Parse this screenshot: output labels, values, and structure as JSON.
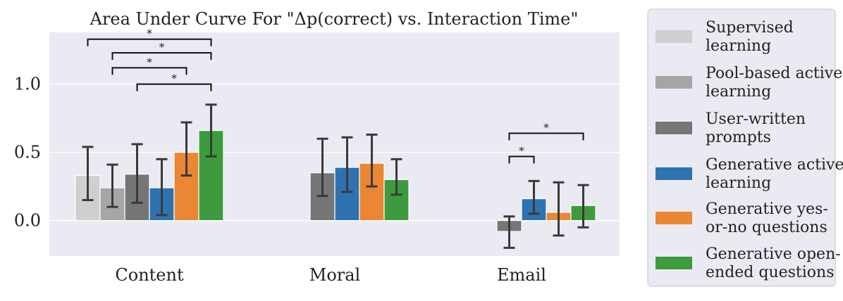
{
  "chart_data": {
    "type": "bar",
    "title": "Area Under Curve For \"Δp(correct) vs. Interaction Time\"",
    "xlabel": "",
    "ylabel": "",
    "ylim": [
      -0.26,
      1.38
    ],
    "yticks": [
      0.0,
      0.5,
      1.0
    ],
    "ytick_labels": [
      "0.0",
      "0.5",
      "1.0"
    ],
    "grid": true,
    "legend_position": "right",
    "categories": [
      "Content",
      "Moral",
      "Email"
    ],
    "series": [
      {
        "name": "Supervised learning",
        "legend_lines": [
          "Supervised",
          "learning"
        ],
        "color": "#cfcfcf",
        "values": [
          0.33,
          null,
          null
        ],
        "err_low": [
          0.15,
          null,
          null
        ],
        "err_high": [
          0.54,
          null,
          null
        ]
      },
      {
        "name": "Pool-based active learning",
        "legend_lines": [
          "Pool-based active",
          "learning"
        ],
        "color": "#a6a6a6",
        "values": [
          0.24,
          null,
          null
        ],
        "err_low": [
          0.1,
          null,
          null
        ],
        "err_high": [
          0.41,
          null,
          null
        ]
      },
      {
        "name": "User-written prompts",
        "legend_lines": [
          "User-written",
          "prompts"
        ],
        "color": "#767676",
        "values": [
          0.34,
          0.35,
          -0.08
        ],
        "err_low": [
          0.13,
          0.18,
          -0.2
        ],
        "err_high": [
          0.56,
          0.6,
          0.03
        ]
      },
      {
        "name": "Generative active learning",
        "legend_lines": [
          "Generative active",
          "learning"
        ],
        "color": "#2e73b0",
        "values": [
          0.24,
          0.39,
          0.16
        ],
        "err_low": [
          0.04,
          0.21,
          0.05
        ],
        "err_high": [
          0.45,
          0.61,
          0.29
        ]
      },
      {
        "name": "Generative yes-or-no questions",
        "legend_lines": [
          "Generative yes-",
          "or-no questions"
        ],
        "color": "#ea8634",
        "values": [
          0.5,
          0.42,
          0.06
        ],
        "err_low": [
          0.33,
          0.25,
          -0.11
        ],
        "err_high": [
          0.72,
          0.63,
          0.28
        ]
      },
      {
        "name": "Generative open-ended questions",
        "legend_lines": [
          "Generative open-",
          "ended questions"
        ],
        "color": "#3d9b3d",
        "values": [
          0.66,
          0.3,
          0.11
        ],
        "err_low": [
          0.47,
          0.19,
          -0.05
        ],
        "err_high": [
          0.85,
          0.45,
          0.26
        ]
      }
    ],
    "significance": [
      {
        "category": "Content",
        "from_series": 0,
        "to_series": 5,
        "y": 1.33,
        "label": "*"
      },
      {
        "category": "Content",
        "from_series": 1,
        "to_series": 5,
        "y": 1.23,
        "label": "*"
      },
      {
        "category": "Content",
        "from_series": 1,
        "to_series": 4,
        "y": 1.12,
        "label": "*"
      },
      {
        "category": "Content",
        "from_series": 2,
        "to_series": 5,
        "y": 1.0,
        "label": "*"
      },
      {
        "category": "Email",
        "from_series": 2,
        "to_series": 5,
        "y": 0.64,
        "label": "*"
      },
      {
        "category": "Email",
        "from_series": 2,
        "to_series": 3,
        "y": 0.47,
        "label": "*"
      }
    ]
  }
}
